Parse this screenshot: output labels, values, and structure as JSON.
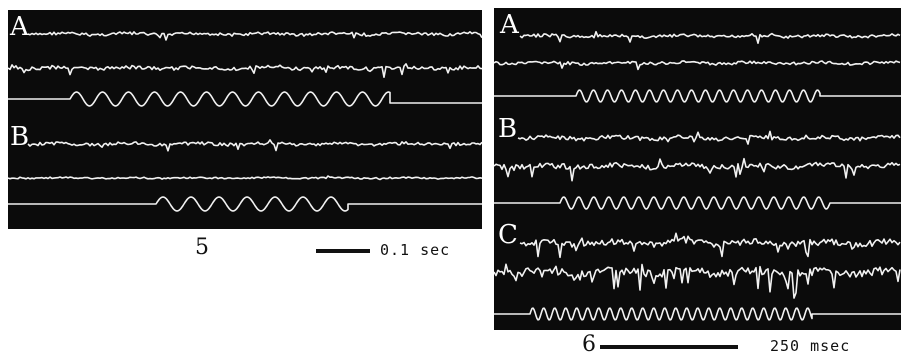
{
  "figure5": {
    "panel_labels": [
      "A",
      "B"
    ],
    "number": "5",
    "scale_label": "0.1 sec"
  },
  "figure6": {
    "panel_labels": [
      "A",
      "B",
      "C"
    ],
    "number": "6",
    "scale_label": "250 msec"
  },
  "colors": {
    "background": "#0b0b0b",
    "trace": "#f2f2f2",
    "ink": "#111111"
  }
}
